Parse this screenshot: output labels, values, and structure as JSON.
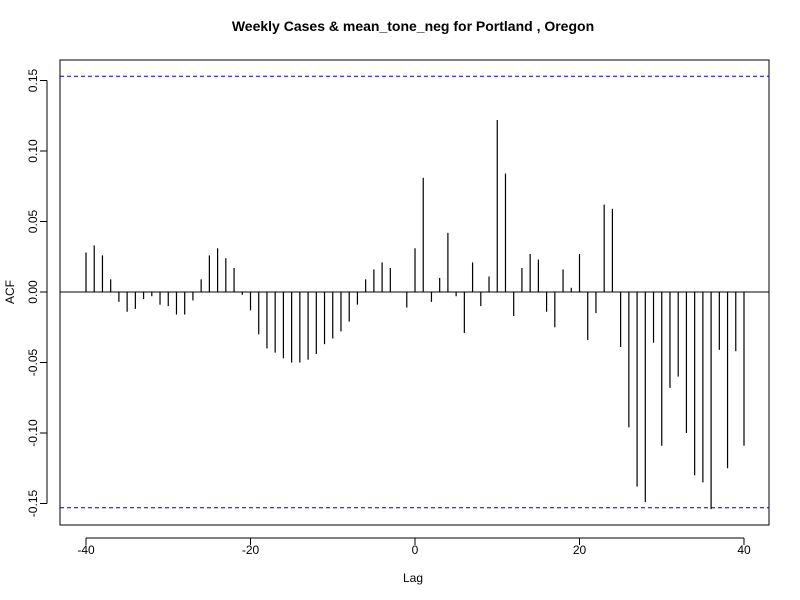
{
  "chart_data": {
    "type": "bar",
    "title": "Weekly Cases & mean_tone_neg for Portland , Oregon",
    "xlabel": "Lag",
    "ylabel": "ACF",
    "xlim": [
      -40,
      40
    ],
    "ylim": [
      -0.153,
      0.153
    ],
    "x_ticks": [
      -40,
      -20,
      0,
      20,
      40
    ],
    "x_tick_labels": [
      "-40",
      "-20",
      "0",
      "20",
      "40"
    ],
    "y_ticks": [
      -0.15,
      -0.1,
      -0.05,
      0.0,
      0.05,
      0.1,
      0.15
    ],
    "y_tick_labels": [
      "-0.15",
      "-0.10",
      "-0.05",
      "0.00",
      "0.05",
      "0.10",
      "0.15"
    ],
    "confidence_bounds": [
      0.153,
      -0.153
    ],
    "bound_color": "#0000cc",
    "zero_line": true,
    "grid": false,
    "lags": [
      -40,
      -39,
      -38,
      -37,
      -36,
      -35,
      -34,
      -33,
      -32,
      -31,
      -30,
      -29,
      -28,
      -27,
      -26,
      -25,
      -24,
      -23,
      -22,
      -21,
      -20,
      -19,
      -18,
      -17,
      -16,
      -15,
      -14,
      -13,
      -12,
      -11,
      -10,
      -9,
      -8,
      -7,
      -6,
      -5,
      -4,
      -3,
      -2,
      -1,
      0,
      1,
      2,
      3,
      4,
      5,
      6,
      7,
      8,
      9,
      10,
      11,
      12,
      13,
      14,
      15,
      16,
      17,
      18,
      19,
      20,
      21,
      22,
      23,
      24,
      25,
      26,
      27,
      28,
      29,
      30,
      31,
      32,
      33,
      34,
      35,
      36,
      37,
      38,
      39,
      40
    ],
    "values": [
      0.028,
      0.033,
      0.026,
      0.009,
      -0.007,
      -0.014,
      -0.012,
      -0.005,
      -0.003,
      -0.009,
      -0.01,
      -0.016,
      -0.016,
      -0.006,
      0.009,
      0.026,
      0.031,
      0.024,
      0.017,
      -0.002,
      -0.013,
      -0.03,
      -0.04,
      -0.043,
      -0.047,
      -0.05,
      -0.05,
      -0.048,
      -0.044,
      -0.037,
      -0.033,
      -0.028,
      -0.021,
      -0.009,
      0.009,
      0.016,
      0.021,
      0.017,
      0.0,
      -0.011,
      0.031,
      0.081,
      -0.007,
      0.01,
      0.042,
      -0.003,
      -0.029,
      0.021,
      -0.01,
      0.011,
      0.122,
      0.084,
      -0.017,
      0.017,
      0.027,
      0.023,
      -0.014,
      -0.025,
      0.016,
      0.003,
      0.027,
      -0.034,
      -0.015,
      0.062,
      0.059,
      -0.039,
      -0.096,
      -0.138,
      -0.149,
      -0.036,
      -0.109,
      -0.068,
      -0.06,
      -0.1,
      -0.13,
      -0.135,
      -0.154,
      -0.041,
      -0.125,
      -0.042,
      -0.109
    ]
  }
}
